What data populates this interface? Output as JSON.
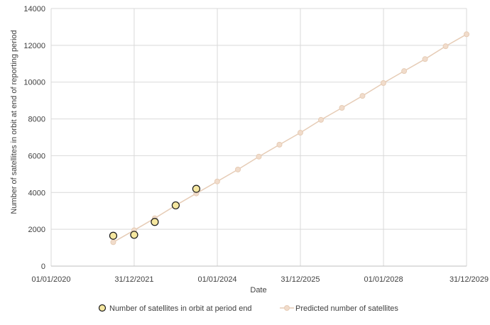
{
  "chart_data": {
    "type": "scatter",
    "xlabel": "Date",
    "ylabel": "Number of satellites in orbit at end of reporting period",
    "x_ticks": [
      "01/01/2020",
      "31/12/2021",
      "01/01/2024",
      "31/12/2025",
      "01/01/2028",
      "31/12/2029"
    ],
    "y_ticks": [
      "0",
      "2000",
      "4000",
      "6000",
      "8000",
      "10000",
      "12000",
      "14000"
    ],
    "ylim": [
      0,
      14000
    ],
    "xlim": [
      "01/01/2020",
      "31/12/2029"
    ],
    "grid": true,
    "legend_position": "bottom",
    "series": [
      {
        "name": "Number of satellites in orbit at period end",
        "style": "markers",
        "color": "#f5e7a0",
        "edge_color": "#1a1a1a",
        "points": [
          {
            "x": "30/06/2021",
            "y": 1650
          },
          {
            "x": "31/12/2021",
            "y": 1700
          },
          {
            "x": "30/06/2022",
            "y": 2400
          },
          {
            "x": "31/12/2022",
            "y": 3300
          },
          {
            "x": "30/06/2023",
            "y": 4200
          }
        ]
      },
      {
        "name": "Predicted number of satellites",
        "style": "line-markers",
        "color": "#f1dccb",
        "edge_color": "#e6ccb6",
        "points": [
          {
            "x": "30/06/2021",
            "y": 1300
          },
          {
            "x": "31/12/2021",
            "y": 1950
          },
          {
            "x": "30/06/2022",
            "y": 2600
          },
          {
            "x": "31/12/2022",
            "y": 3300
          },
          {
            "x": "30/06/2023",
            "y": 3950
          },
          {
            "x": "31/12/2023",
            "y": 4600
          },
          {
            "x": "30/06/2024",
            "y": 5250
          },
          {
            "x": "31/12/2024",
            "y": 5950
          },
          {
            "x": "30/06/2025",
            "y": 6600
          },
          {
            "x": "31/12/2025",
            "y": 7250
          },
          {
            "x": "30/06/2026",
            "y": 7950
          },
          {
            "x": "31/12/2026",
            "y": 8600
          },
          {
            "x": "30/06/2027",
            "y": 9250
          },
          {
            "x": "31/12/2027",
            "y": 9950
          },
          {
            "x": "30/06/2028",
            "y": 10600
          },
          {
            "x": "31/12/2028",
            "y": 11250
          },
          {
            "x": "30/06/2029",
            "y": 11950
          },
          {
            "x": "31/12/2029",
            "y": 12600
          }
        ]
      }
    ]
  }
}
